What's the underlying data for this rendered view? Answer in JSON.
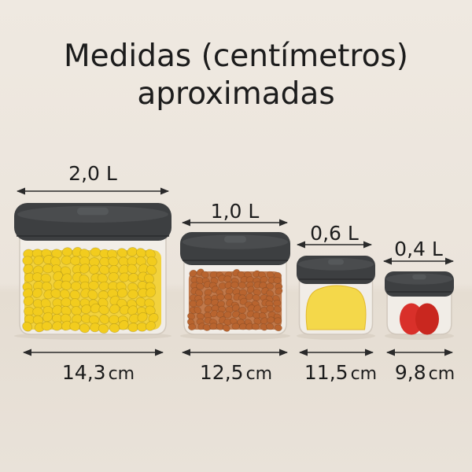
{
  "title": {
    "line1": "Medidas (centímetros)",
    "line2": "aproximadas"
  },
  "jars": [
    {
      "volume": "2,0 L",
      "diameter": "14,3",
      "unit": "cm",
      "contents_color": "#f2cc1e"
    },
    {
      "volume": "1,0 L",
      "diameter": "12,5",
      "unit": "cm",
      "contents_color": "#b8642f"
    },
    {
      "volume": "0,6 L",
      "diameter": "11,5",
      "unit": "cm",
      "contents_color": "#f4d84a"
    },
    {
      "volume": "0,4 L",
      "diameter": "9,8",
      "unit": "cm",
      "contents_color": "#d9302a"
    }
  ],
  "colors": {
    "background": "#ece6de",
    "lid": "#3d3f41",
    "text": "#1c1c1c"
  }
}
